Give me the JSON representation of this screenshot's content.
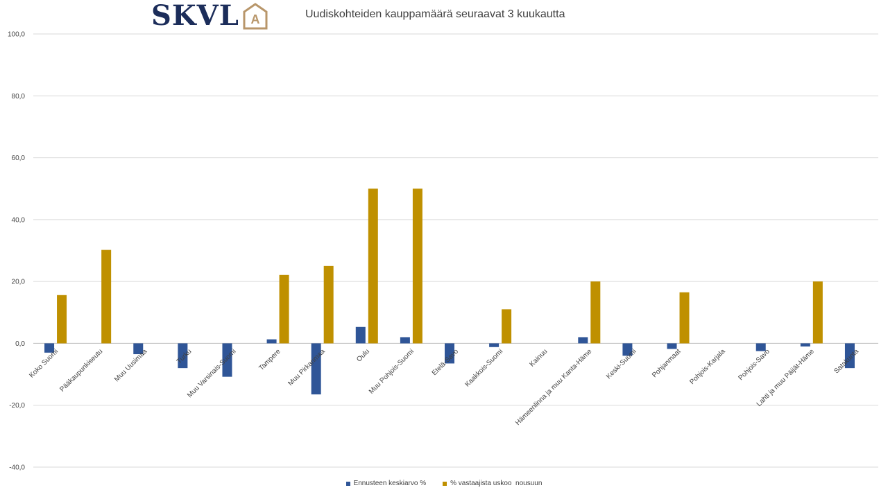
{
  "logo": {
    "text": "SKVL",
    "mark": "A",
    "colors": {
      "text": "#1c2d5a",
      "mark": "#b8966a"
    }
  },
  "chart_data": {
    "type": "bar",
    "title": "Uudiskohteiden kauppamäärä seuraavat 3 kuukautta",
    "xlabel": "",
    "ylabel": "",
    "ylim": [
      -40,
      100
    ],
    "yticks": [
      "100,0",
      "80,0",
      "60,0",
      "40,0",
      "20,0",
      "0,0",
      "-20,0",
      "-40,0"
    ],
    "ytick_values": [
      100,
      80,
      60,
      40,
      20,
      0,
      -20,
      -40
    ],
    "grid": true,
    "legend_position": "bottom",
    "categories": [
      "Koko Suomi",
      "Pääkaupunkiseutu",
      "Muu Uusimaa",
      "Turku",
      "Muu Varsinais-Suomi",
      "Tampere",
      "Muu Pirkanmaa",
      "Oulu",
      "Muu Pohjois-Suomi",
      "Etelä-Savo",
      "Kaakkois-Suomi",
      "Kainuu",
      "Hämeenlinna ja muu Kanta-Häme",
      "Keski-Suomi",
      "Pohjanmaat",
      "Pohjois-Karjala",
      "Pohjois-Savo",
      "Lahti ja muu Päijät-Häme",
      "Satakunta"
    ],
    "series": [
      {
        "name": "Ennusteen keskiarvo %",
        "color": "#2f5597",
        "values": [
          -3.0,
          0,
          -3.5,
          -8.0,
          -10.8,
          1.3,
          -16.5,
          5.3,
          2.0,
          -6.5,
          -1.2,
          0,
          2.0,
          -4.0,
          -1.8,
          0,
          -2.5,
          -1.0,
          -8.0
        ]
      },
      {
        "name": "% vastaajista uskoo  nousuun",
        "color": "#bf9000",
        "values": [
          15.6,
          30.2,
          0,
          0,
          0,
          22.1,
          25.0,
          50.0,
          50.0,
          0,
          11.0,
          0,
          20.0,
          0,
          16.5,
          0,
          0,
          20.0,
          0
        ]
      }
    ]
  }
}
